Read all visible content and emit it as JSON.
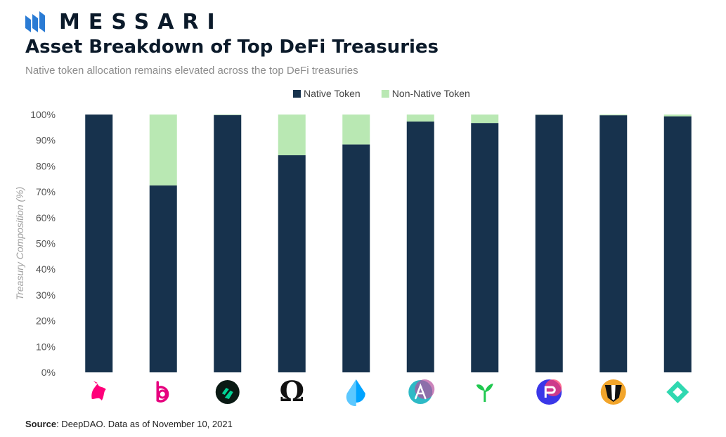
{
  "brand": {
    "name": "MESSARI",
    "logo_icon": "messari-logo-icon",
    "color": "#0b1a2a",
    "logo_color": "#2a7bd4"
  },
  "title": "Asset Breakdown of Top DeFi Treasuries",
  "subtitle": "Native token allocation remains elevated across the top DeFi treasuries",
  "source": {
    "label": "Source",
    "text": ": DeepDAO. Data as of November 10, 2021"
  },
  "chart_data": {
    "type": "bar",
    "stacked": true,
    "categories": [
      "uniswap-icon",
      "badger-b-icon",
      "compound-icon",
      "omega-icon",
      "lido-drop-icon",
      "aave-icon",
      "sprout-icon",
      "rari-icon",
      "badger-dao-icon",
      "gem-icon"
    ],
    "series": [
      {
        "name": "Native Token",
        "color": "#17324d",
        "values": [
          100,
          72.5,
          99.8,
          84.2,
          88.4,
          97.3,
          96.7,
          99.9,
          99.7,
          99.3
        ]
      },
      {
        "name": "Non-Native Token",
        "color": "#b9e8b3",
        "values": [
          0,
          27.5,
          0.2,
          15.8,
          11.6,
          2.7,
          3.3,
          0.1,
          0.3,
          0.7
        ]
      }
    ],
    "yticks": [
      "0%",
      "10%",
      "20%",
      "30%",
      "40%",
      "50%",
      "60%",
      "70%",
      "80%",
      "90%",
      "100%"
    ],
    "ylabel": "Treasury Composition (%)",
    "ylim": [
      0,
      100
    ],
    "legend_position": "top-center",
    "grid": false
  }
}
